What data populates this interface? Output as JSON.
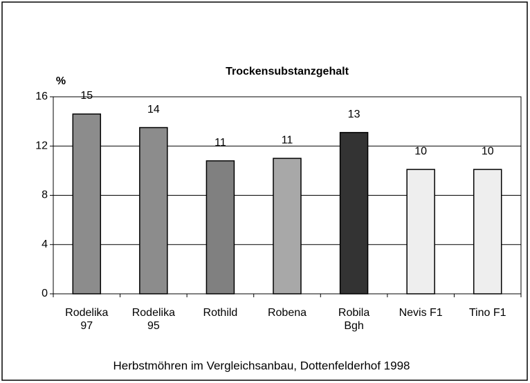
{
  "chart_data": {
    "type": "bar",
    "title": "Trockensubstanzgehalt",
    "y_label": "%",
    "caption": "Herbstmöhren im Vergleichsanbau, Dottenfelderhof 1998",
    "categories": [
      [
        "Rodelika",
        "97"
      ],
      [
        "Rodelika",
        "95"
      ],
      [
        "Rothild"
      ],
      [
        "Robena"
      ],
      [
        "Robila",
        "Bgh"
      ],
      [
        "Nevis F1"
      ],
      [
        "Tino F1"
      ]
    ],
    "values": [
      14.6,
      13.5,
      10.8,
      11.0,
      13.1,
      10.1,
      10.1
    ],
    "value_labels": [
      "15",
      "14",
      "11",
      "11",
      "13",
      "10",
      "10"
    ],
    "colors": [
      "#8c8c8c",
      "#8c8c8c",
      "#808080",
      "#a8a8a8",
      "#333333",
      "#eeeeee",
      "#eeeeee"
    ],
    "ylim": [
      0,
      16
    ],
    "yticks": [
      0,
      4,
      8,
      12,
      16
    ],
    "grid": true
  }
}
